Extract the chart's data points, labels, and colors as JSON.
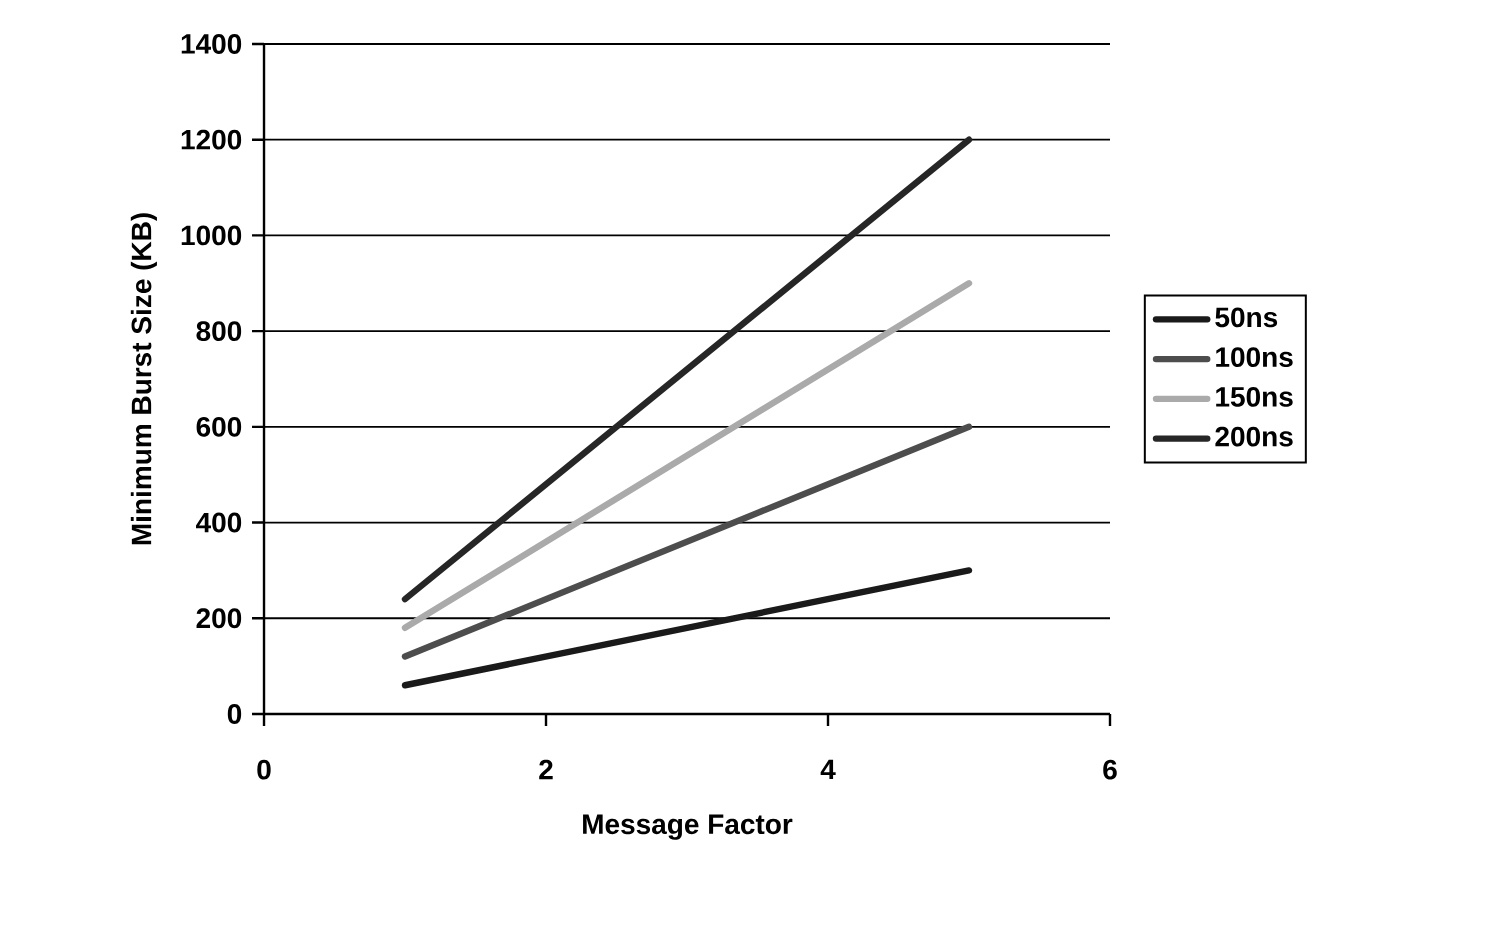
{
  "chart_data": {
    "type": "line",
    "xlabel": "Message Factor",
    "ylabel": "Minimum Burst Size (KB)",
    "xlim": [
      0,
      6
    ],
    "xticks": [
      0,
      2,
      4,
      6
    ],
    "ylim": [
      0,
      1400
    ],
    "yticks": [
      0,
      200,
      400,
      600,
      800,
      1000,
      1200,
      1400
    ],
    "grid": "y",
    "legend": "right",
    "marker": "none",
    "line_style": "solid",
    "x": [
      1,
      5
    ],
    "series": [
      {
        "name": "50ns",
        "color": "#1a1a1a",
        "values": [
          60,
          300
        ]
      },
      {
        "name": "100ns",
        "color": "#4d4d4d",
        "values": [
          120,
          600
        ]
      },
      {
        "name": "150ns",
        "color": "#aaaaaa",
        "values": [
          180,
          900
        ]
      },
      {
        "name": "200ns",
        "color": "#262626",
        "values": [
          240,
          1200
        ]
      }
    ]
  }
}
